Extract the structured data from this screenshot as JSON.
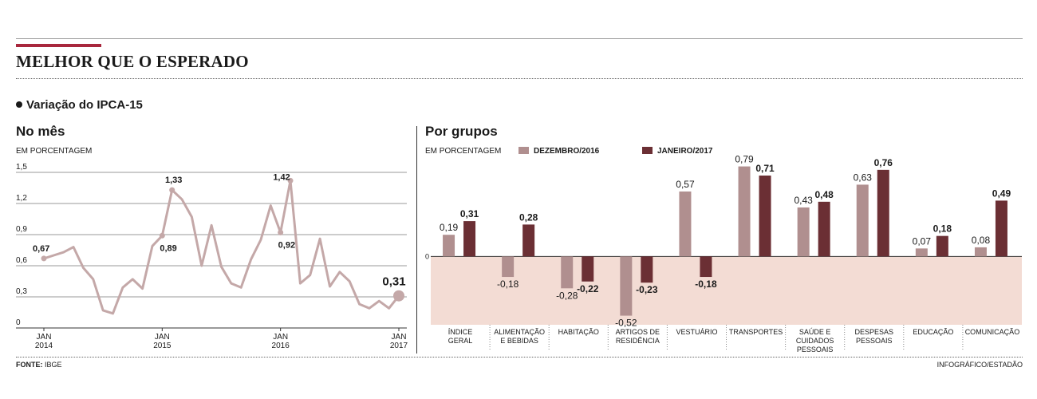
{
  "title": "MELHOR QUE O ESPERADO",
  "subtitle": "Variação do IPCA-15",
  "footer": {
    "source_label": "FONTE:",
    "source": "IBGE",
    "credit": "INFOGRÁFICO/ESTADÃO"
  },
  "colors": {
    "line": "#c4a8a8",
    "dec": "#b08f8f",
    "jan": "#6b2f34",
    "negative_band": "#f3dcd4",
    "accent": "#a8273d"
  },
  "chart_data": [
    {
      "type": "line",
      "title": "No mês",
      "ylabel": "EM PORCENTAGEM",
      "ylim": [
        0,
        1.5
      ],
      "yticks": [
        "0",
        "0,3",
        "0,6",
        "0,9",
        "1,2",
        "1,5"
      ],
      "xticks": [
        {
          "index": 0,
          "label": [
            "JAN",
            "2014"
          ]
        },
        {
          "index": 12,
          "label": [
            "JAN",
            "2015"
          ]
        },
        {
          "index": 24,
          "label": [
            "JAN",
            "2016"
          ]
        },
        {
          "index": 36,
          "label": [
            "JAN",
            "2017"
          ]
        }
      ],
      "values": [
        0.67,
        0.7,
        0.73,
        0.78,
        0.58,
        0.47,
        0.17,
        0.14,
        0.39,
        0.47,
        0.38,
        0.79,
        0.89,
        1.33,
        1.24,
        1.07,
        0.6,
        0.99,
        0.59,
        0.43,
        0.39,
        0.66,
        0.85,
        1.18,
        0.92,
        1.42,
        0.43,
        0.51,
        0.86,
        0.4,
        0.54,
        0.45,
        0.23,
        0.19,
        0.26,
        0.19,
        0.31
      ],
      "annotations": [
        {
          "index": 0,
          "text": "0,67"
        },
        {
          "index": 12,
          "text": "0,89"
        },
        {
          "index": 13,
          "text": "1,33"
        },
        {
          "index": 24,
          "text": "0,92"
        },
        {
          "index": 25,
          "text": "1,42"
        },
        {
          "index": 36,
          "text": "0,31"
        }
      ]
    },
    {
      "type": "bar",
      "title": "Por grupos",
      "ylabel": "EM PORCENTAGEM",
      "ylim": [
        -0.6,
        0.85
      ],
      "zero_label": "0",
      "categories": [
        [
          "ÍNDICE",
          "GERAL"
        ],
        [
          "ALIMENTAÇÃO",
          "E BEBIDAS"
        ],
        [
          "HABITAÇÃO"
        ],
        [
          "ARTIGOS DE",
          "RESIDÊNCIA"
        ],
        [
          "VESTUÁRIO"
        ],
        [
          "TRANSPORTES"
        ],
        [
          "SAÚDE E",
          "CUIDADOS",
          "PESSOAIS"
        ],
        [
          "DESPESAS",
          "PESSOAIS"
        ],
        [
          "EDUCAÇÃO"
        ],
        [
          "COMUNICAÇÃO"
        ]
      ],
      "series": [
        {
          "name": "DEZEMBRO/2016",
          "values": [
            0.19,
            -0.18,
            -0.28,
            -0.52,
            0.57,
            0.79,
            0.43,
            0.63,
            0.07,
            0.08
          ],
          "labels": [
            "0,19",
            "-0,18",
            "-0,28",
            "-0,52",
            "0,57",
            "0,79",
            "0,43",
            "0,63",
            "0,07",
            "0,08"
          ]
        },
        {
          "name": "JANEIRO/2017",
          "values": [
            0.31,
            0.28,
            -0.22,
            -0.23,
            -0.18,
            0.71,
            0.48,
            0.76,
            0.18,
            0.49
          ],
          "labels": [
            "0,31",
            "0,28",
            "-0,22",
            "-0,23",
            "-0,18",
            "0,71",
            "0,48",
            "0,76",
            "0,18",
            "0,49"
          ]
        }
      ]
    }
  ]
}
